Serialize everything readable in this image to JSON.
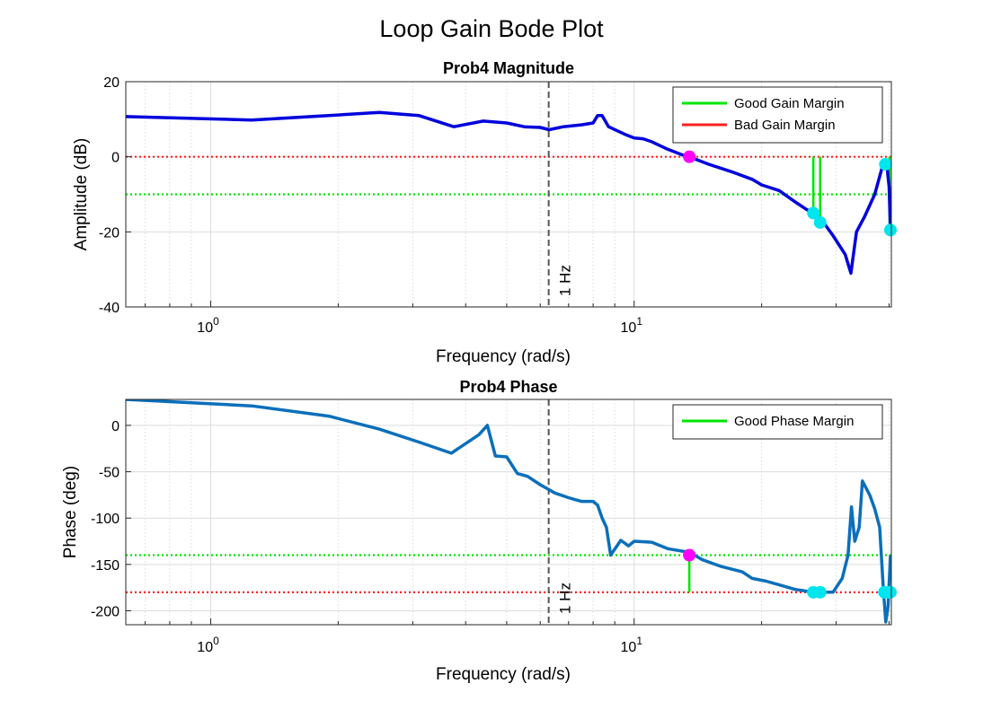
{
  "figure": {
    "title": "Loop Gain Bode Plot"
  },
  "colors": {
    "magnitude_line": "#0000dd",
    "phase_line": "#0b6fba",
    "good": "#00e600",
    "bad": "#ff2020",
    "crossover_marker": "#ff00ff",
    "margin_marker": "#00e5ee",
    "marker_1hz": "#555555",
    "grid": "#dcdcdc"
  },
  "chart_data": [
    {
      "type": "line",
      "title": "Prob4 Magnitude",
      "xlabel": "Frequency (rad/s)",
      "ylabel": "Amplitude (dB)",
      "xscale": "log",
      "xlim": [
        0.63,
        40.5
      ],
      "ylim": [
        -40,
        20
      ],
      "yticks": [
        20,
        0,
        -20,
        -40
      ],
      "xticks": [
        {
          "value": 1,
          "base": "10",
          "exp": "0"
        },
        {
          "value": 10,
          "base": "10",
          "exp": "1"
        }
      ],
      "grid": true,
      "legend_position": "top-right",
      "vline": {
        "x": 6.283,
        "label": "1 Hz"
      },
      "reference_lines": [
        {
          "y": 0,
          "role": "bad"
        },
        {
          "y": -10,
          "role": "good"
        }
      ],
      "series": [
        {
          "role": "magnitude",
          "points": [
            [
              0.63,
              10.7
            ],
            [
              1.25,
              9.8
            ],
            [
              1.9,
              11
            ],
            [
              2.5,
              11.8
            ],
            [
              3.1,
              11
            ],
            [
              3.75,
              8
            ],
            [
              4.4,
              9.5
            ],
            [
              5,
              9
            ],
            [
              5.5,
              8
            ],
            [
              6.0,
              7.8
            ],
            [
              6.3,
              7.2
            ],
            [
              6.8,
              8
            ],
            [
              7.5,
              8.5
            ],
            [
              8,
              9
            ],
            [
              8.2,
              11
            ],
            [
              8.4,
              11
            ],
            [
              8.7,
              8
            ],
            [
              9.5,
              6
            ],
            [
              10,
              5
            ],
            [
              10.5,
              4.8
            ],
            [
              11,
              4
            ],
            [
              12,
              2
            ],
            [
              13,
              0.5
            ],
            [
              13.5,
              0
            ],
            [
              15,
              -2
            ],
            [
              17,
              -4
            ],
            [
              19,
              -6
            ],
            [
              20,
              -7.5
            ],
            [
              22,
              -9
            ],
            [
              24,
              -12
            ],
            [
              25.5,
              -14
            ],
            [
              26.5,
              -15
            ],
            [
              28,
              -17.5
            ],
            [
              29.5,
              -21
            ],
            [
              31.5,
              -26
            ],
            [
              32.5,
              -31
            ],
            [
              33.5,
              -20
            ],
            [
              35,
              -16
            ],
            [
              37,
              -10
            ],
            [
              38.5,
              -3
            ],
            [
              39.5,
              -2
            ],
            [
              40,
              -8
            ],
            [
              40.3,
              -19.5
            ]
          ]
        }
      ],
      "margin_lines": [
        {
          "x": 26.5,
          "y_from": 0,
          "y_to": -15,
          "role": "good"
        },
        {
          "x": 27.5,
          "y_from": 0,
          "y_to": -17.5,
          "role": "good"
        },
        {
          "x": 40.1,
          "y_from": 0,
          "y_to": -19.5,
          "role": "good"
        }
      ],
      "crossover_points": [
        [
          13.5,
          0
        ]
      ],
      "margin_points": [
        [
          26.5,
          -15
        ],
        [
          27.5,
          -17.5
        ],
        [
          39.2,
          -2
        ],
        [
          40.3,
          -19.5
        ]
      ],
      "legend": [
        {
          "label": "Good Gain Margin",
          "role": "good"
        },
        {
          "label": "Bad Gain Margin",
          "role": "bad"
        }
      ]
    },
    {
      "type": "line",
      "title": "Prob4 Phase",
      "xlabel": "Frequency (rad/s)",
      "ylabel": "Phase (deg)",
      "xscale": "log",
      "xlim": [
        0.63,
        40.5
      ],
      "ylim": [
        -215,
        28
      ],
      "yticks": [
        0,
        -50,
        -100,
        -150,
        -200
      ],
      "xticks": [
        {
          "value": 1,
          "base": "10",
          "exp": "0"
        },
        {
          "value": 10,
          "base": "10",
          "exp": "1"
        }
      ],
      "grid": true,
      "legend_position": "top-right",
      "vline": {
        "x": 6.283,
        "label": "1 Hz"
      },
      "reference_lines": [
        {
          "y": -140,
          "role": "good"
        },
        {
          "y": -180,
          "role": "bad"
        }
      ],
      "series": [
        {
          "role": "phase",
          "points": [
            [
              0.63,
              28
            ],
            [
              1.25,
              21
            ],
            [
              1.9,
              10
            ],
            [
              2.5,
              -4
            ],
            [
              3.1,
              -18
            ],
            [
              3.7,
              -30
            ],
            [
              4.3,
              -10
            ],
            [
              4.5,
              0
            ],
            [
              4.7,
              -33
            ],
            [
              5.0,
              -34
            ],
            [
              5.3,
              -52
            ],
            [
              5.6,
              -55
            ],
            [
              6.0,
              -64
            ],
            [
              6.5,
              -73
            ],
            [
              7.0,
              -78
            ],
            [
              7.5,
              -82
            ],
            [
              8.0,
              -82
            ],
            [
              8.2,
              -86
            ],
            [
              8.4,
              -100
            ],
            [
              8.6,
              -110
            ],
            [
              8.8,
              -140
            ],
            [
              9.3,
              -124
            ],
            [
              9.7,
              -130
            ],
            [
              10,
              -125
            ],
            [
              11,
              -126
            ],
            [
              12,
              -133
            ],
            [
              13.5,
              -137
            ],
            [
              14.5,
              -145
            ],
            [
              16,
              -152
            ],
            [
              18,
              -158
            ],
            [
              19,
              -165
            ],
            [
              20.5,
              -168
            ],
            [
              22,
              -172
            ],
            [
              24,
              -177
            ],
            [
              26.5,
              -180
            ],
            [
              28,
              -180
            ],
            [
              29.5,
              -180
            ],
            [
              31,
              -165
            ],
            [
              32,
              -140
            ],
            [
              32.6,
              -88
            ],
            [
              33.2,
              -125
            ],
            [
              34,
              -110
            ],
            [
              34.6,
              -60
            ],
            [
              36,
              -75
            ],
            [
              37,
              -90
            ],
            [
              38,
              -110
            ],
            [
              38.8,
              -178
            ],
            [
              39.3,
              -212
            ],
            [
              39.8,
              -195
            ],
            [
              40.3,
              -140
            ]
          ]
        }
      ],
      "margin_lines": [
        {
          "x": 13.5,
          "y_from": -140,
          "y_to": -180,
          "role": "good"
        }
      ],
      "crossover_points": [
        [
          13.5,
          -140
        ]
      ],
      "margin_points": [
        [
          26.5,
          -180
        ],
        [
          27.5,
          -180
        ],
        [
          39.0,
          -180
        ],
        [
          39.8,
          -180
        ],
        [
          40.3,
          -180
        ]
      ],
      "legend": [
        {
          "label": "Good Phase Margin",
          "role": "good"
        }
      ]
    }
  ]
}
